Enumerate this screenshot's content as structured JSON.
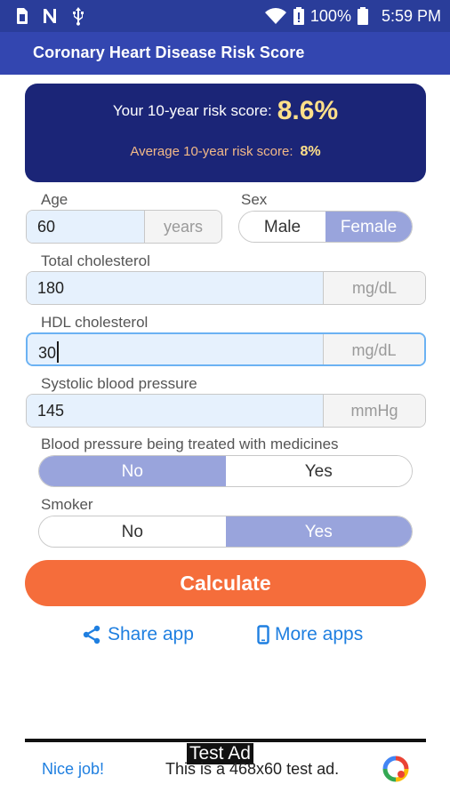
{
  "status_bar": {
    "battery_percent": "100%",
    "time": "5:59 PM",
    "icons": [
      "sim-card-icon",
      "n-app-icon",
      "usb-icon",
      "wifi-icon",
      "battery-alert-icon",
      "battery-icon"
    ]
  },
  "app_bar": {
    "title": "Coronary Heart Disease Risk Score"
  },
  "result": {
    "risk_label": "Your 10-year risk score:",
    "risk_value": "8.6%",
    "avg_label": "Average 10-year risk score:",
    "avg_value": "8%"
  },
  "form": {
    "age": {
      "label": "Age",
      "value": "60",
      "unit": "years"
    },
    "sex": {
      "label": "Sex",
      "options": [
        "Male",
        "Female"
      ],
      "selected": "Female"
    },
    "total_cholesterol": {
      "label": "Total cholesterol",
      "value": "180",
      "unit": "mg/dL"
    },
    "hdl": {
      "label": "HDL cholesterol",
      "value": "30",
      "unit": "mg/dL"
    },
    "systolic": {
      "label": "Systolic blood pressure",
      "value": "145",
      "unit": "mmHg"
    },
    "bp_treated": {
      "label": "Blood pressure being treated with medicines",
      "options": [
        "No",
        "Yes"
      ],
      "selected": "No"
    },
    "smoker": {
      "label": "Smoker",
      "options": [
        "No",
        "Yes"
      ],
      "selected": "Yes"
    }
  },
  "actions": {
    "calculate": "Calculate",
    "share": "Share app",
    "more": "More apps"
  },
  "ad": {
    "tag": "Test Ad",
    "headline": "Nice job!",
    "text": "This is a 468x60 test ad."
  },
  "colors": {
    "status_bar": "#2a3d9a",
    "app_bar": "#3346b0",
    "result_card": "#1b2577",
    "risk_value": "#ffe08a",
    "selected_option": "#99a4dc",
    "calculate_button": "#f56d3b",
    "link": "#1f7fe0"
  }
}
